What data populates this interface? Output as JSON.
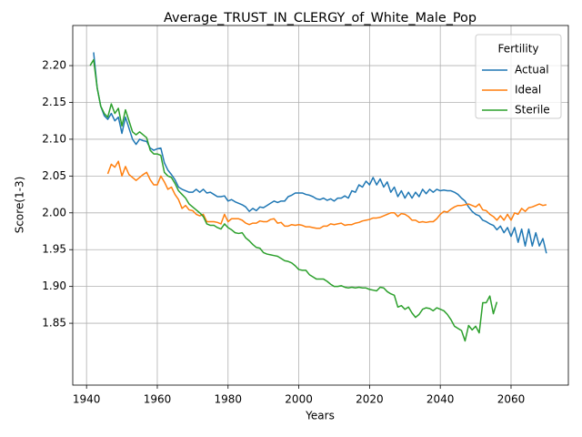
{
  "chart_data": {
    "type": "line",
    "title": "Average_TRUST_IN_CLERGY_of_White_Male_Pop",
    "x_label": "Years",
    "y_label": "Score(1-3)",
    "x": [
      1941,
      1942,
      1943,
      1944,
      1945,
      1946,
      1947,
      1948,
      1949,
      1950,
      1951,
      1952,
      1953,
      1954,
      1955,
      1956,
      1957,
      1958,
      1959,
      1960,
      1961,
      1962,
      1963,
      1964,
      1965,
      1966,
      1967,
      1968,
      1969,
      1970,
      1971,
      1972,
      1973,
      1974,
      1975,
      1976,
      1977,
      1978,
      1979,
      1980,
      1981,
      1982,
      1983,
      1984,
      1985,
      1986,
      1987,
      1988,
      1989,
      1990,
      1991,
      1992,
      1993,
      1994,
      1995,
      1996,
      1997,
      1998,
      1999,
      2000,
      2001,
      2002,
      2003,
      2004,
      2005,
      2006,
      2007,
      2008,
      2009,
      2010,
      2011,
      2012,
      2013,
      2014,
      2015,
      2016,
      2017,
      2018,
      2019,
      2020,
      2021,
      2022,
      2023,
      2024,
      2025,
      2026,
      2027,
      2028,
      2029,
      2030,
      2031,
      2032,
      2033,
      2034,
      2035,
      2036,
      2037,
      2038,
      2039,
      2040,
      2041,
      2042,
      2043,
      2044,
      2045,
      2046,
      2047,
      2048,
      2049,
      2050,
      2051,
      2052,
      2053,
      2054,
      2055,
      2056,
      2057,
      2058,
      2059,
      2060,
      2061,
      2062,
      2063,
      2064,
      2065,
      2066,
      2067,
      2068,
      2069,
      2070
    ],
    "series": [
      {
        "name": "Actual",
        "color": "#1f77b4",
        "values": [
          null,
          2.218,
          2.17,
          2.145,
          2.132,
          2.127,
          2.135,
          2.125,
          2.13,
          2.108,
          2.13,
          2.115,
          2.1,
          2.093,
          2.1,
          2.098,
          2.097,
          2.088,
          2.085,
          2.087,
          2.088,
          2.068,
          2.058,
          2.052,
          2.045,
          2.035,
          2.032,
          2.03,
          2.028,
          2.028,
          2.032,
          2.028,
          2.032,
          2.027,
          2.028,
          2.025,
          2.022,
          2.022,
          2.023,
          2.016,
          2.018,
          2.015,
          2.013,
          2.011,
          2.008,
          2.002,
          2.006,
          2.003,
          2.008,
          2.007,
          2.01,
          2.013,
          2.016,
          2.014,
          2.016,
          2.016,
          2.022,
          2.024,
          2.027,
          2.027,
          2.027,
          2.025,
          2.024,
          2.022,
          2.019,
          2.018,
          2.02,
          2.017,
          2.019,
          2.016,
          2.02,
          2.02,
          2.023,
          2.02,
          2.03,
          2.028,
          2.038,
          2.035,
          2.043,
          2.038,
          2.048,
          2.038,
          2.046,
          2.035,
          2.042,
          2.028,
          2.035,
          2.022,
          2.03,
          2.02,
          2.028,
          2.02,
          2.028,
          2.022,
          2.032,
          2.026,
          2.032,
          2.028,
          2.032,
          2.03,
          2.031,
          2.03,
          2.03,
          2.028,
          2.025,
          2.02,
          2.016,
          2.008,
          2.002,
          1.998,
          1.996,
          1.99,
          1.988,
          1.985,
          1.983,
          1.977,
          1.982,
          1.973,
          1.98,
          1.968,
          1.98,
          1.96,
          1.978,
          1.955,
          1.978,
          1.955,
          1.973,
          1.955,
          1.965,
          1.945
        ]
      },
      {
        "name": "Ideal",
        "color": "#ff7f0e",
        "values": [
          null,
          null,
          null,
          null,
          null,
          2.053,
          2.066,
          2.062,
          2.07,
          2.05,
          2.063,
          2.052,
          2.048,
          2.044,
          2.048,
          2.052,
          2.055,
          2.045,
          2.038,
          2.038,
          2.05,
          2.042,
          2.032,
          2.035,
          2.025,
          2.018,
          2.006,
          2.01,
          2.004,
          2.003,
          1.998,
          1.996,
          1.998,
          1.988,
          1.988,
          1.988,
          1.987,
          1.985,
          1.998,
          1.988,
          1.992,
          1.992,
          1.992,
          1.99,
          1.986,
          1.984,
          1.986,
          1.986,
          1.989,
          1.988,
          1.988,
          1.991,
          1.992,
          1.986,
          1.987,
          1.982,
          1.982,
          1.984,
          1.983,
          1.984,
          1.983,
          1.981,
          1.981,
          1.98,
          1.979,
          1.979,
          1.982,
          1.982,
          1.985,
          1.984,
          1.985,
          1.986,
          1.983,
          1.984,
          1.984,
          1.986,
          1.987,
          1.989,
          1.99,
          1.991,
          1.993,
          1.993,
          1.994,
          1.996,
          1.998,
          2.0,
          2.0,
          1.995,
          1.999,
          1.998,
          1.995,
          1.99,
          1.99,
          1.987,
          1.988,
          1.987,
          1.988,
          1.988,
          1.992,
          1.998,
          2.002,
          2.001,
          2.005,
          2.008,
          2.01,
          2.01,
          2.011,
          2.012,
          2.01,
          2.008,
          2.012,
          2.004,
          2.003,
          1.998,
          1.995,
          1.99,
          1.996,
          1.99,
          1.998,
          1.99,
          2.0,
          1.998,
          2.006,
          2.002,
          2.007,
          2.008,
          2.01,
          2.012,
          2.01,
          2.011
        ]
      },
      {
        "name": "Sterile",
        "color": "#2ca02c",
        "values": [
          2.2,
          2.208,
          2.17,
          2.145,
          2.135,
          2.13,
          2.148,
          2.135,
          2.142,
          2.118,
          2.14,
          2.125,
          2.11,
          2.106,
          2.11,
          2.106,
          2.102,
          2.085,
          2.08,
          2.08,
          2.078,
          2.055,
          2.05,
          2.048,
          2.04,
          2.03,
          2.025,
          2.02,
          2.012,
          2.008,
          2.004,
          2.0,
          1.995,
          1.985,
          1.983,
          1.983,
          1.98,
          1.978,
          1.985,
          1.98,
          1.977,
          1.973,
          1.972,
          1.973,
          1.966,
          1.962,
          1.957,
          1.953,
          1.952,
          1.946,
          1.944,
          1.943,
          1.942,
          1.941,
          1.938,
          1.935,
          1.934,
          1.932,
          1.928,
          1.923,
          1.922,
          1.922,
          1.916,
          1.913,
          1.91,
          1.91,
          1.91,
          1.907,
          1.903,
          1.9,
          1.9,
          1.901,
          1.899,
          1.898,
          1.899,
          1.898,
          1.899,
          1.898,
          1.898,
          1.896,
          1.895,
          1.894,
          1.899,
          1.898,
          1.893,
          1.89,
          1.888,
          1.872,
          1.874,
          1.869,
          1.872,
          1.864,
          1.858,
          1.862,
          1.869,
          1.871,
          1.87,
          1.867,
          1.871,
          1.869,
          1.867,
          1.862,
          1.855,
          1.846,
          1.843,
          1.84,
          1.826,
          1.847,
          1.841,
          1.846,
          1.837,
          1.878,
          1.878,
          1.887,
          1.863,
          1.879,
          null,
          null,
          null,
          null,
          null,
          null,
          null,
          null,
          null,
          null,
          null,
          null,
          null,
          null
        ]
      }
    ],
    "xlim": [
      1936.1,
      2076.2
    ],
    "ylim": [
      1.766,
      2.2545
    ],
    "xticks": [
      1940,
      1960,
      1980,
      2000,
      2020,
      2040,
      2060
    ],
    "yticks": [
      1.85,
      {
        "value": 1.9,
        "label": "1.90"
      },
      1.95,
      {
        "value": 2.0,
        "label": "2.00"
      },
      2.05,
      {
        "value": 2.1,
        "label": "2.10"
      },
      2.15,
      {
        "value": 2.2,
        "label": "2.20"
      }
    ],
    "grid": true,
    "legend_title": "Fertility",
    "legend_position": "upper right"
  }
}
